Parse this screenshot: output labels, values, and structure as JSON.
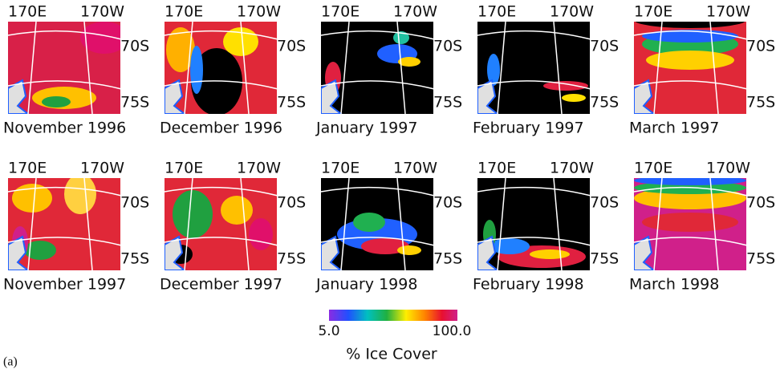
{
  "panels": [
    {
      "lon_left": "170E",
      "lon_right": "170W",
      "lat_top": "70S",
      "lat_bottom": "75S",
      "caption": "November 1996"
    },
    {
      "lon_left": "170E",
      "lon_right": "170W",
      "lat_top": "70S",
      "lat_bottom": "75S",
      "caption": "December 1996"
    },
    {
      "lon_left": "170E",
      "lon_right": "170W",
      "lat_top": "70S",
      "lat_bottom": "75S",
      "caption": "January 1997"
    },
    {
      "lon_left": "170E",
      "lon_right": "170W",
      "lat_top": "70S",
      "lat_bottom": "75S",
      "caption": "February 1997"
    },
    {
      "lon_left": "170E",
      "lon_right": "170W",
      "lat_top": "70S",
      "lat_bottom": "75S",
      "caption": "March 1997"
    },
    {
      "lon_left": "170E",
      "lon_right": "170W",
      "lat_top": "70S",
      "lat_bottom": "75S",
      "caption": "November 1997"
    },
    {
      "lon_left": "170E",
      "lon_right": "170W",
      "lat_top": "70S",
      "lat_bottom": "75S",
      "caption": "December 1997"
    },
    {
      "lon_left": "170E",
      "lon_right": "170W",
      "lat_top": "70S",
      "lat_bottom": "75S",
      "caption": "January 1998"
    },
    {
      "lon_left": "170E",
      "lon_right": "170W",
      "lat_top": "70S",
      "lat_bottom": "75S",
      "caption": "February 1998"
    },
    {
      "lon_left": "170E",
      "lon_right": "170W",
      "lat_top": "70S",
      "lat_bottom": "75S",
      "caption": "March 1998"
    }
  ],
  "colorbar": {
    "min_label": "5.0",
    "max_label": "100.0",
    "title": "% Ice Cover"
  },
  "panel_label": "(a)"
}
